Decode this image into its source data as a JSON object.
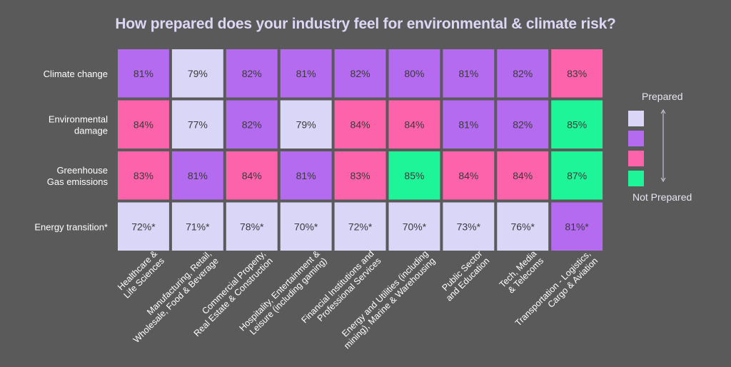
{
  "colors": {
    "background": "#5a5a5a",
    "title": "#ddd6f4",
    "text": "#ffffff",
    "cell_text": "#3a3a3a",
    "levels": [
      "#dad6f7",
      "#b46bf0",
      "#fd63ab",
      "#1ef598"
    ]
  },
  "legend": {
    "top_label": "Prepared",
    "bottom_label": "Not Prepared"
  },
  "chart_data": {
    "type": "heatmap",
    "title": "How prepared does your industry feel for environmental & climate risk?",
    "rows": [
      "Climate change",
      "Environmental damage",
      "Greenhouse Gas emissions",
      "Energy transition*"
    ],
    "columns": [
      "Healthcare & Life Sciences",
      "Manufacturing, Retail, Wholesale, Food & Beverage",
      "Commercial Property, Real Estate & Construction",
      "Hospitality, Entertainment & Leisure (including gaming)",
      "Financial Institutions and Professional Services",
      "Energy and Utilities (including mining), Marine & Warehousing",
      "Public Sector and Education",
      "Tech, Media & Telecoms",
      "Transportation - Logistics, Cargo & Aviation"
    ],
    "values": [
      [
        "81%",
        "79%",
        "82%",
        "81%",
        "82%",
        "80%",
        "81%",
        "82%",
        "83%"
      ],
      [
        "84%",
        "77%",
        "82%",
        "79%",
        "84%",
        "84%",
        "81%",
        "82%",
        "85%"
      ],
      [
        "83%",
        "81%",
        "84%",
        "81%",
        "83%",
        "85%",
        "84%",
        "84%",
        "87%"
      ],
      [
        "72%*",
        "71%*",
        "78%*",
        "70%*",
        "72%*",
        "70%*",
        "73%*",
        "76%*",
        "81%*"
      ]
    ],
    "levels": [
      [
        1,
        0,
        1,
        1,
        1,
        1,
        1,
        1,
        2
      ],
      [
        2,
        0,
        1,
        0,
        2,
        2,
        1,
        1,
        3
      ],
      [
        2,
        1,
        2,
        1,
        2,
        3,
        2,
        2,
        3
      ],
      [
        0,
        0,
        0,
        0,
        0,
        0,
        0,
        0,
        1
      ]
    ],
    "legend_levels": [
      "Prepared",
      "",
      "",
      "Not Prepared"
    ]
  }
}
